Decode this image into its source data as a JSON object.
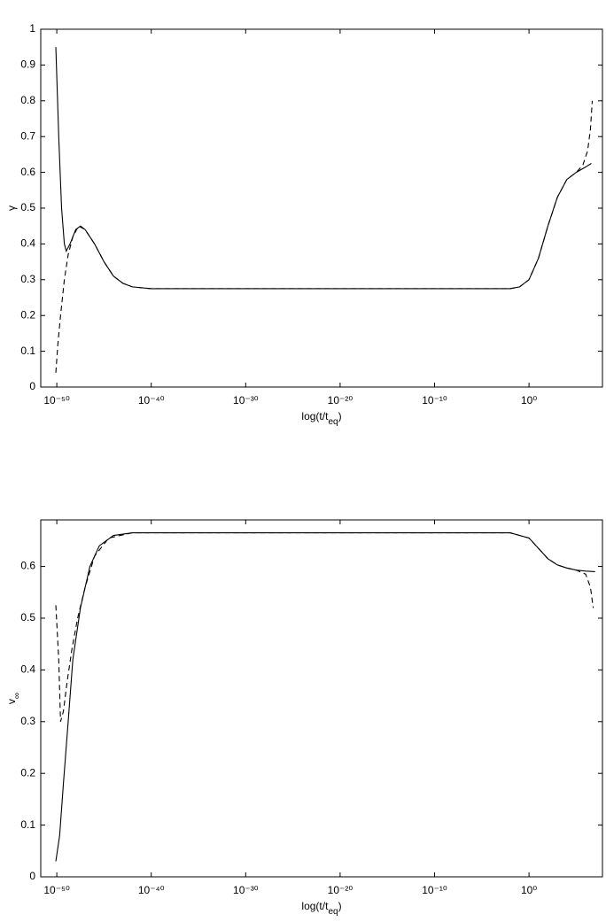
{
  "chart_data": [
    {
      "type": "line",
      "ylabel": [
        "γ"
      ],
      "xlabel": [
        "log(t/t",
        "eq",
        ")"
      ],
      "xscale": "log",
      "xlim": [
        2e-52,
        60000000.0
      ],
      "ylim": [
        0,
        1
      ],
      "xticks": [
        {
          "value": 1e-50,
          "label": "10⁻⁵⁰"
        },
        {
          "value": 1e-40,
          "label": "10⁻⁴⁰"
        },
        {
          "value": 1e-30,
          "label": "10⁻³⁰"
        },
        {
          "value": 1e-20,
          "label": "10⁻²⁰"
        },
        {
          "value": 1e-10,
          "label": "10⁻¹⁰"
        },
        {
          "value": 1,
          "label": "10⁰"
        }
      ],
      "yticks": [
        0,
        0.1,
        0.2,
        0.3,
        0.4,
        0.5,
        0.6,
        0.7,
        0.8,
        0.9,
        1
      ],
      "series": [
        {
          "color": "#000000",
          "dash": false,
          "x": [
            7.9e-51,
            1.6e-50,
            3.2e-50,
            6.3e-50,
            1e-49,
            2.5e-49,
            1e-48,
            3.2e-48,
            1e-47,
            1e-46,
            1e-45,
            1e-44,
            1e-43,
            1e-42,
            1e-40,
            1e-20,
            0.01,
            0.1,
            1,
            10,
            100,
            1000,
            10000,
            100000,
            1000000,
            4000000
          ],
          "values": [
            0.95,
            0.7,
            0.5,
            0.4,
            0.38,
            0.4,
            0.44,
            0.45,
            0.44,
            0.4,
            0.35,
            0.31,
            0.29,
            0.28,
            0.275,
            0.275,
            0.275,
            0.28,
            0.3,
            0.36,
            0.45,
            0.53,
            0.58,
            0.6,
            0.615,
            0.625
          ]
        },
        {
          "color": "#000000",
          "dash": true,
          "x": [
            7.9e-51,
            1.3e-50,
            2.5e-50,
            6.3e-50,
            1.6e-49,
            5e-49,
            2e-48,
            1e-47,
            1e-46,
            1e-45,
            1e-44,
            1e-43,
            1e-42,
            1e-40,
            1e-20,
            0.01,
            0.1,
            1,
            10,
            100,
            1000,
            10000,
            100000,
            500000,
            1600000,
            3200000,
            5000000
          ],
          "values": [
            0.04,
            0.12,
            0.2,
            0.3,
            0.37,
            0.42,
            0.45,
            0.44,
            0.4,
            0.35,
            0.31,
            0.29,
            0.28,
            0.275,
            0.275,
            0.275,
            0.28,
            0.3,
            0.36,
            0.45,
            0.53,
            0.58,
            0.6,
            0.62,
            0.66,
            0.72,
            0.8
          ]
        }
      ]
    },
    {
      "type": "line",
      "ylabel": [
        "v",
        "∞"
      ],
      "xlabel": [
        "log(t/t",
        "eq",
        ")"
      ],
      "xscale": "log",
      "xlim": [
        2e-52,
        60000000.0
      ],
      "ylim": [
        0,
        0.69
      ],
      "xticks": [
        {
          "value": 1e-50,
          "label": "10⁻⁵⁰"
        },
        {
          "value": 1e-40,
          "label": "10⁻⁴⁰"
        },
        {
          "value": 1e-30,
          "label": "10⁻³⁰"
        },
        {
          "value": 1e-20,
          "label": "10⁻²⁰"
        },
        {
          "value": 1e-10,
          "label": "10⁻¹⁰"
        },
        {
          "value": 1,
          "label": "10⁰"
        }
      ],
      "yticks": [
        0,
        0.1,
        0.2,
        0.3,
        0.4,
        0.5,
        0.6
      ],
      "series": [
        {
          "color": "#000000",
          "dash": false,
          "x": [
            7.9e-51,
            2e-50,
            5e-50,
            1.6e-49,
            5e-49,
            3.2e-48,
            3.2e-47,
            3.2e-46,
            1e-44,
            1e-42,
            1e-20,
            0.01,
            1,
            10,
            100,
            1000,
            10000,
            100000,
            1000000,
            10000000
          ],
          "values": [
            0.03,
            0.08,
            0.18,
            0.3,
            0.42,
            0.52,
            0.6,
            0.64,
            0.66,
            0.665,
            0.665,
            0.665,
            0.655,
            0.635,
            0.615,
            0.603,
            0.597,
            0.593,
            0.591,
            0.59
          ]
        },
        {
          "color": "#000000",
          "dash": true,
          "x": [
            7.9e-51,
            1.6e-50,
            2.5e-50,
            5e-50,
            1.3e-49,
            4e-49,
            1.6e-48,
            1e-47,
            1e-46,
            3.2e-45,
            1e-42,
            1e-20,
            0.01,
            1,
            10,
            100,
            1000,
            10000,
            100000,
            1000000,
            3200000,
            6300000
          ],
          "values": [
            0.525,
            0.42,
            0.3,
            0.32,
            0.38,
            0.44,
            0.5,
            0.56,
            0.62,
            0.655,
            0.665,
            0.665,
            0.665,
            0.655,
            0.635,
            0.615,
            0.603,
            0.597,
            0.593,
            0.585,
            0.56,
            0.52
          ]
        }
      ]
    }
  ]
}
